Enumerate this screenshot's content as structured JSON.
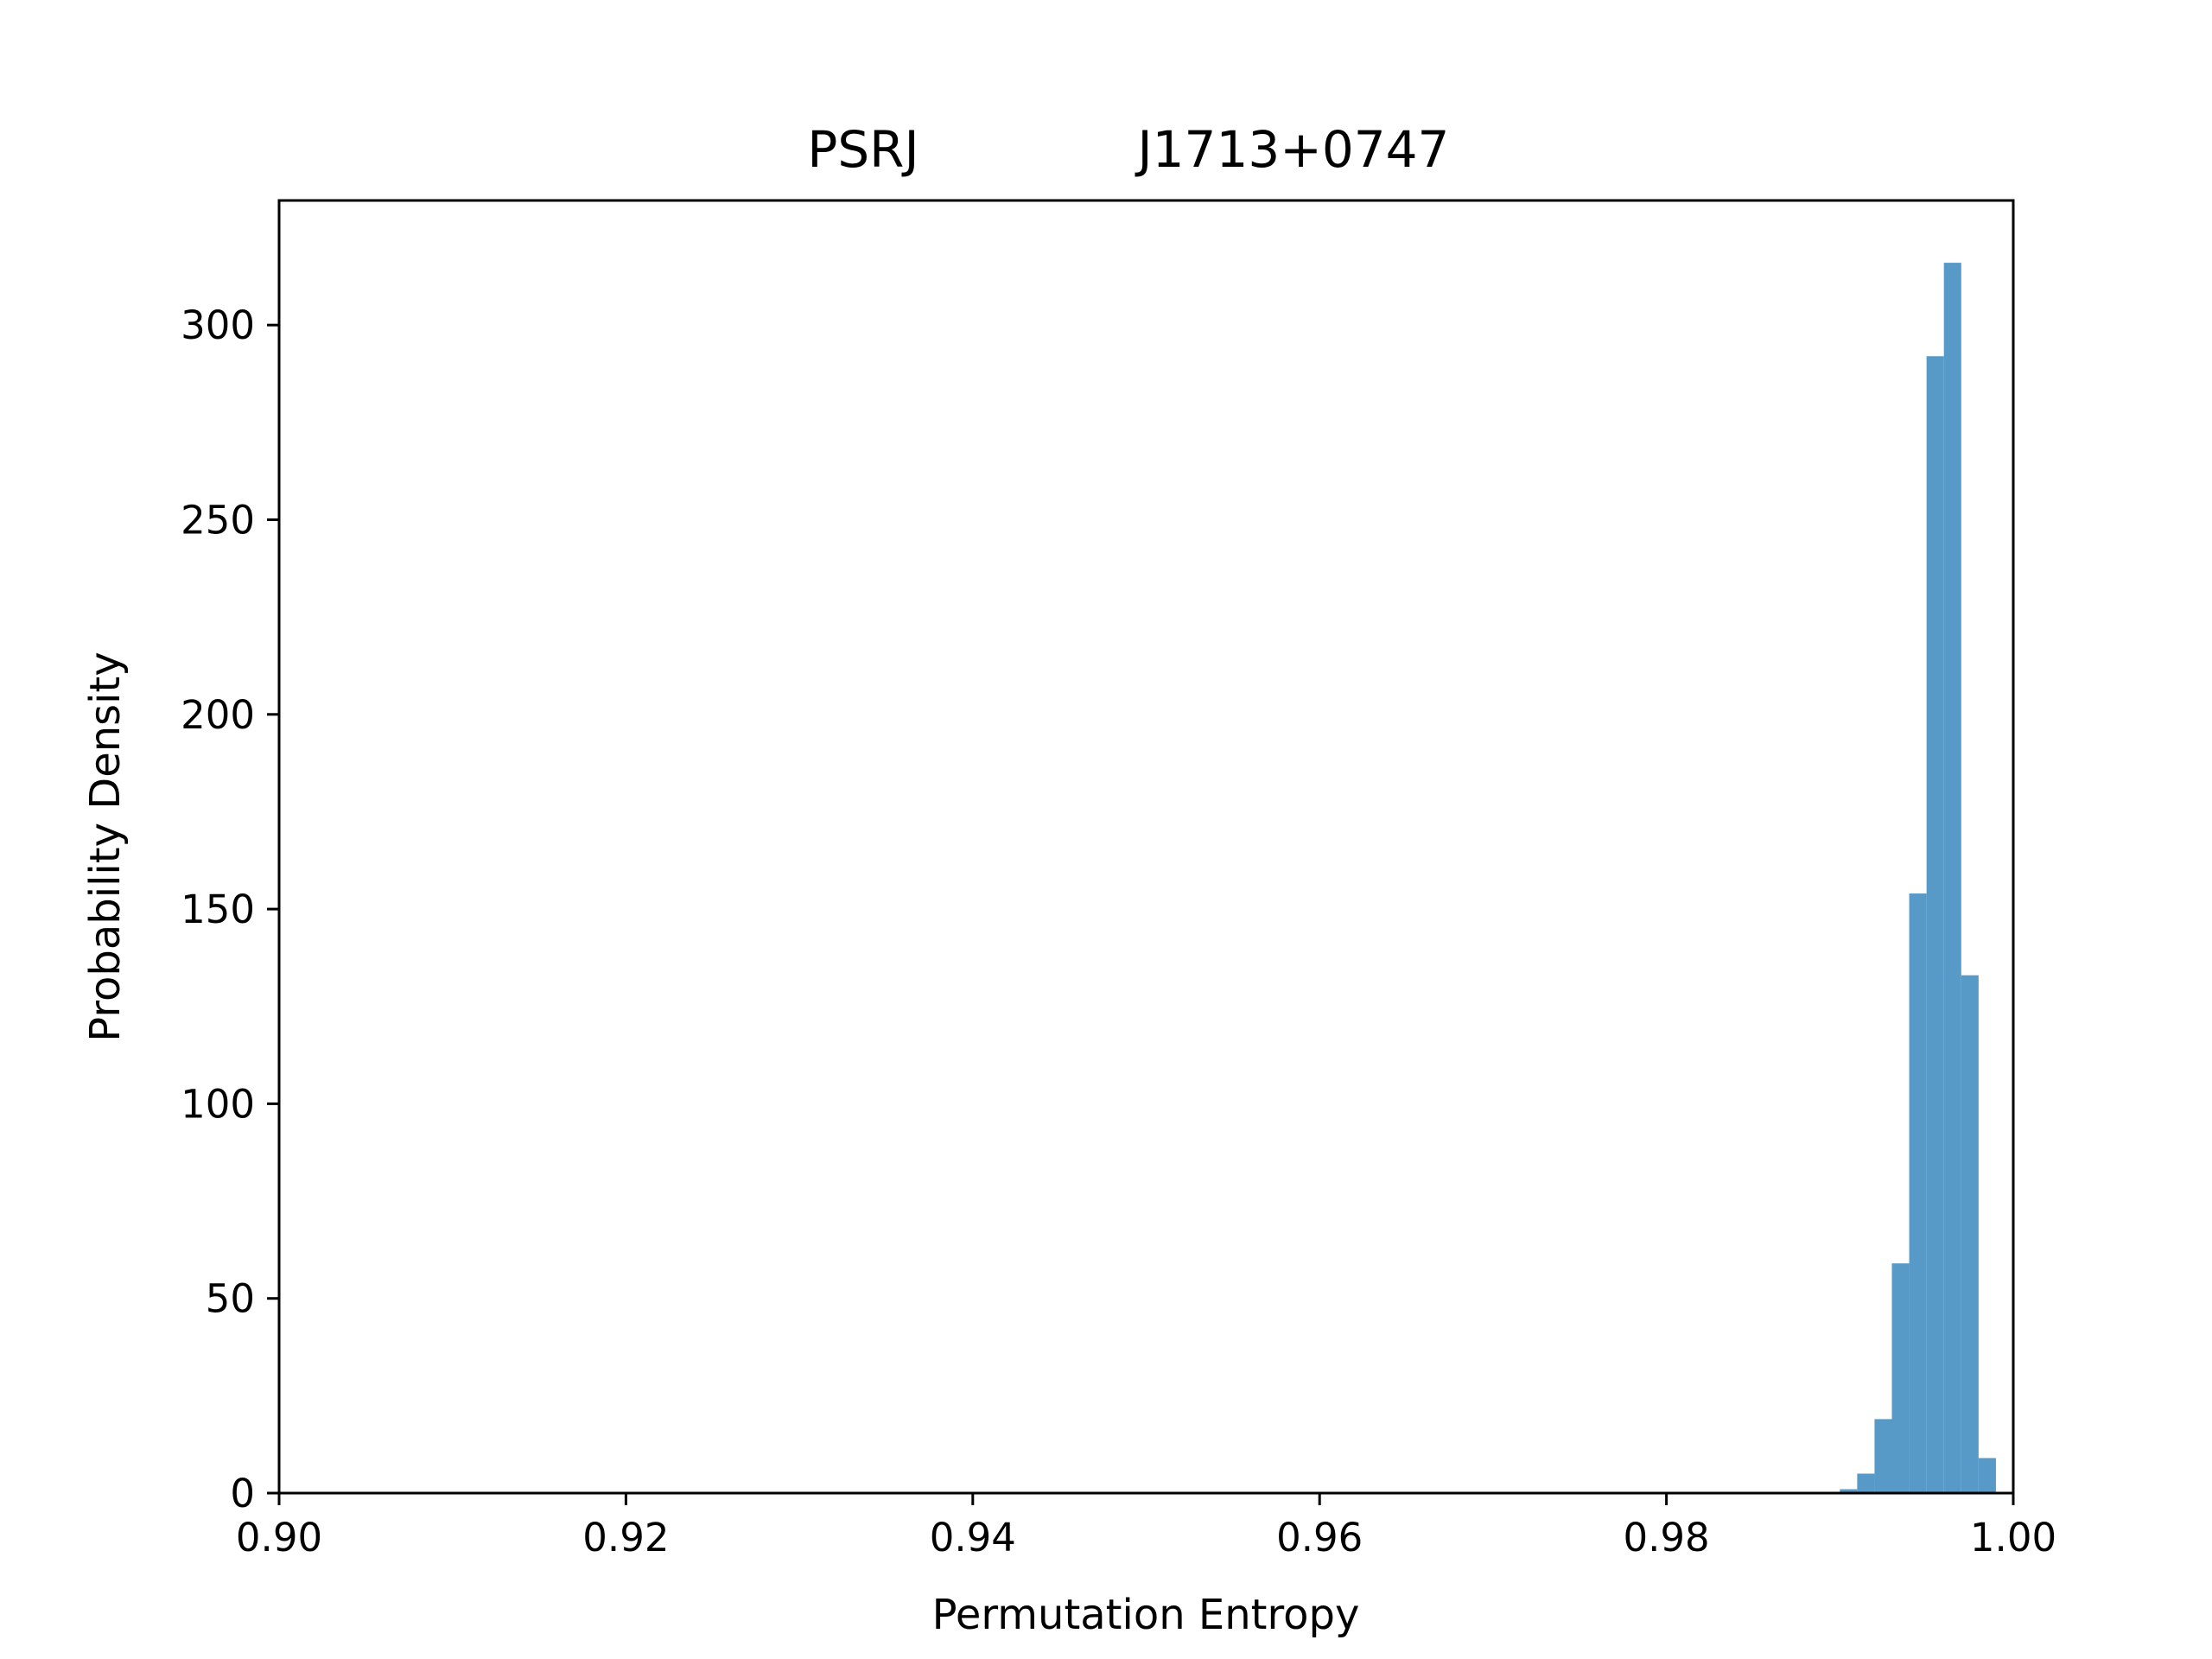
{
  "chart_data": {
    "type": "bar",
    "subtype": "histogram",
    "title_left": "PSRJ",
    "title_right": "J1713+0747",
    "xlabel": "Permutation Entropy",
    "ylabel": "Probability Density",
    "xlim": [
      0.9,
      1.0
    ],
    "ylim": [
      0,
      332
    ],
    "xticks": [
      0.9,
      0.92,
      0.94,
      0.96,
      0.98,
      1.0
    ],
    "xtick_labels": [
      "0.90",
      "0.92",
      "0.94",
      "0.96",
      "0.98",
      "1.00"
    ],
    "yticks": [
      0,
      50,
      100,
      150,
      200,
      250,
      300
    ],
    "ytick_labels": [
      "0",
      "50",
      "100",
      "150",
      "200",
      "250",
      "300"
    ],
    "bin_edges": [
      0.99,
      0.991,
      0.992,
      0.993,
      0.994,
      0.995,
      0.996,
      0.997,
      0.998,
      0.999
    ],
    "values": [
      1,
      5,
      19,
      59,
      154,
      292,
      316,
      133,
      9
    ],
    "bar_color": "#5799c7",
    "grid": false,
    "legend": "none"
  }
}
